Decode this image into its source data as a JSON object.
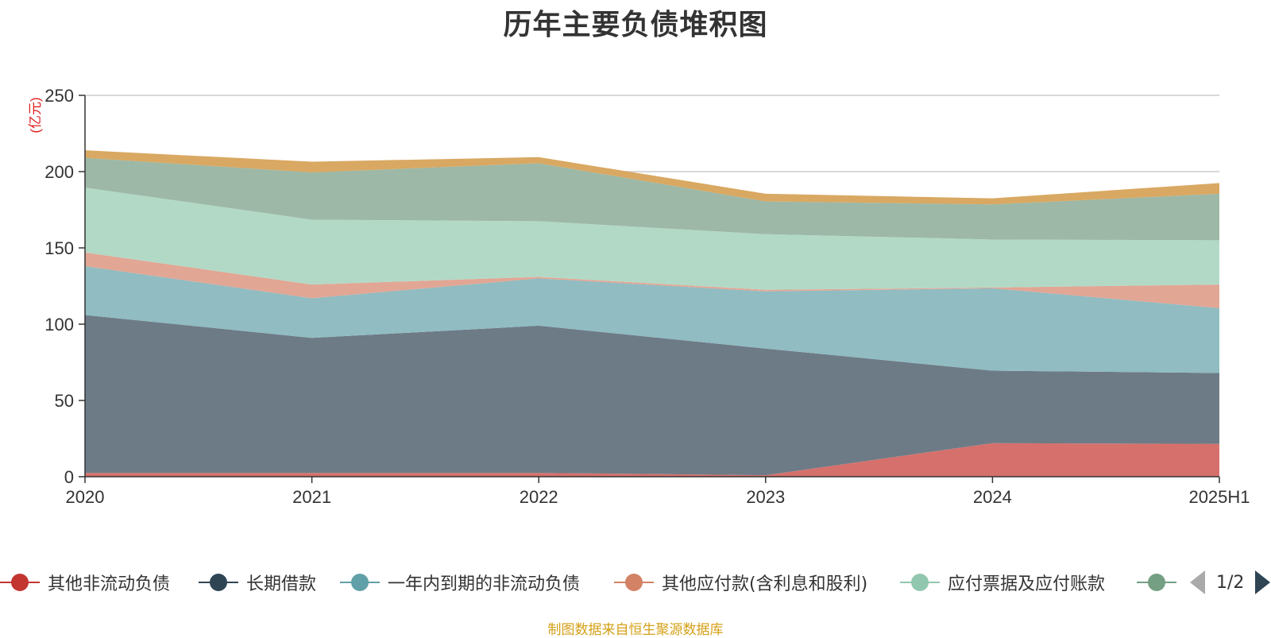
{
  "chart_data": {
    "type": "area",
    "stacked": true,
    "title": "历年主要负债堆积图",
    "unit_label": "(亿元)",
    "xlabel": "",
    "ylabel": "",
    "categories": [
      "2020",
      "2021",
      "2022",
      "2023",
      "2024",
      "2025H1"
    ],
    "ylim": [
      0,
      250
    ],
    "yticks": [
      0,
      50,
      100,
      150,
      200,
      250
    ],
    "grid": true,
    "series": [
      {
        "name": "其他非流动负债",
        "color": "#c23531",
        "fill": "#d6706c",
        "values": [
          2.5,
          2.5,
          2.5,
          1,
          22,
          21.5
        ]
      },
      {
        "name": "长期借款",
        "color": "#2f4554",
        "fill": "#6d7b86",
        "values": [
          103.5,
          88.5,
          96.5,
          83,
          47.5,
          46.5
        ]
      },
      {
        "name": "一年内到期的非流动负债",
        "color": "#61a0a8",
        "fill": "#90bcc2",
        "values": [
          32,
          26,
          31,
          37.5,
          54,
          42.5
        ]
      },
      {
        "name": "其他应付款(含利息和股利)",
        "color": "#d48265",
        "fill": "#e2a694",
        "values": [
          9,
          9,
          1,
          1,
          0.5,
          15.5
        ]
      },
      {
        "name": "应付票据及应付账款",
        "color": "#91c7ae",
        "fill": "#b2d9c6",
        "values": [
          42.5,
          42.5,
          36.5,
          36.5,
          31.5,
          29
        ]
      },
      {
        "name": "",
        "color": "#749f83",
        "fill": "#9db8a6",
        "values": [
          19.5,
          31,
          38,
          21.5,
          23,
          30.5
        ]
      },
      {
        "name": "",
        "color": "#ca8622",
        "fill": "#d9a862",
        "values": [
          5,
          7,
          4,
          5,
          4,
          7
        ]
      }
    ],
    "legend_position": "bottom",
    "legend_page": "1/2"
  },
  "footer": "制图数据来自恒生聚源数据库"
}
